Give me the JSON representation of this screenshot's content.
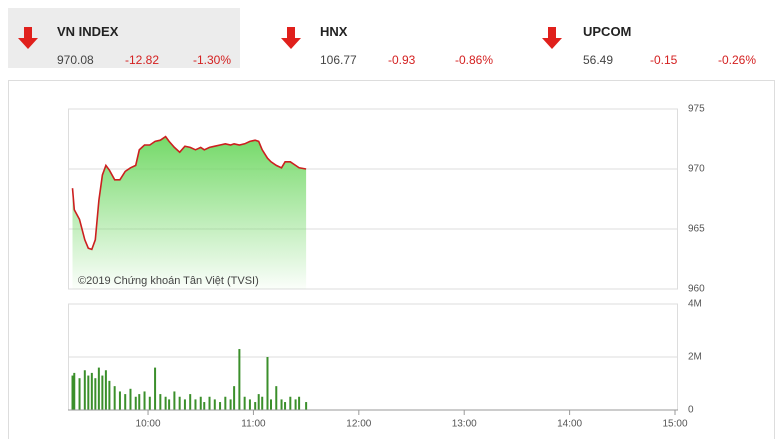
{
  "indices": [
    {
      "name": "VN INDEX",
      "value": "970.08",
      "change": "-12.82",
      "percent": "-1.30%"
    },
    {
      "name": "HNX",
      "value": "106.77",
      "change": "-0.93",
      "percent": "-0.86%"
    },
    {
      "name": "UPCOM",
      "value": "56.49",
      "change": "-0.15",
      "percent": "-0.26%"
    }
  ],
  "chart_data": [
    {
      "type": "area",
      "annotation": "©2019 Chứng khoán Tân Việt (TVSI)",
      "x": [
        557,
        558,
        561,
        564,
        566,
        568,
        570,
        572,
        574,
        576,
        578,
        581,
        584,
        587,
        590,
        593,
        595,
        598,
        601,
        604,
        607,
        610,
        612,
        615,
        618,
        621,
        624,
        627,
        630,
        632,
        635,
        638,
        641,
        644,
        647,
        649,
        652,
        655,
        658,
        661,
        663,
        665,
        668,
        670,
        673,
        676,
        678,
        681,
        684,
        686,
        690
      ],
      "values": [
        968.4,
        966.6,
        965.8,
        964.1,
        963.4,
        963.3,
        964.1,
        967.4,
        969.5,
        970.3,
        969.9,
        969.1,
        969.1,
        969.8,
        970.1,
        970.3,
        971.6,
        972,
        972,
        972.3,
        972.4,
        972.7,
        972.3,
        971.8,
        971.4,
        971.9,
        971.8,
        971.6,
        971.8,
        971.6,
        971.8,
        971.9,
        972,
        972.1,
        972,
        972.1,
        972,
        972.1,
        972.3,
        972.4,
        972.3,
        971.6,
        970.9,
        970.6,
        970.3,
        970.1,
        970.6,
        970.6,
        970.3,
        970.1,
        970
      ],
      "color": "#cc1f1f",
      "fill": "#74d968",
      "xlim": [
        555,
        900
      ],
      "ylim": [
        960,
        975
      ],
      "yticks": [
        960,
        965,
        970,
        975
      ],
      "grid": true
    },
    {
      "type": "bar",
      "x": [
        557,
        558,
        561,
        564,
        566,
        568,
        570,
        572,
        574,
        576,
        578,
        581,
        584,
        587,
        590,
        593,
        595,
        598,
        601,
        604,
        607,
        610,
        612,
        615,
        618,
        621,
        624,
        627,
        630,
        632,
        635,
        638,
        641,
        644,
        647,
        649,
        652,
        655,
        658,
        661,
        663,
        665,
        668,
        670,
        673,
        676,
        678,
        681,
        684,
        686,
        690
      ],
      "values": [
        1.3,
        1.4,
        1.2,
        1.5,
        1.3,
        1.4,
        1.2,
        1.6,
        1.3,
        1.5,
        1.1,
        0.9,
        0.7,
        0.6,
        0.8,
        0.5,
        0.6,
        0.7,
        0.5,
        1.6,
        0.6,
        0.5,
        0.4,
        0.7,
        0.5,
        0.4,
        0.6,
        0.4,
        0.5,
        0.3,
        0.5,
        0.4,
        0.3,
        0.5,
        0.4,
        0.9,
        2.3,
        0.5,
        0.4,
        0.3,
        0.6,
        0.5,
        2,
        0.4,
        0.9,
        0.4,
        0.3,
        0.5,
        0.4,
        0.5,
        0.3
      ],
      "color": "#3b8f2b",
      "xlim": [
        555,
        900
      ],
      "ylim": [
        0,
        4
      ],
      "yticks": [
        0,
        {
          "value": 2,
          "label": "2M"
        },
        {
          "value": 4,
          "label": "4M"
        }
      ],
      "xticks": [
        {
          "value": 600,
          "label": "10:00"
        },
        {
          "value": 660,
          "label": "11:00"
        },
        {
          "value": 720,
          "label": "12:00"
        },
        {
          "value": 780,
          "label": "13:00"
        },
        {
          "value": 840,
          "label": "14:00"
        },
        {
          "value": 900,
          "label": "15:00"
        }
      ],
      "grid": true
    }
  ]
}
